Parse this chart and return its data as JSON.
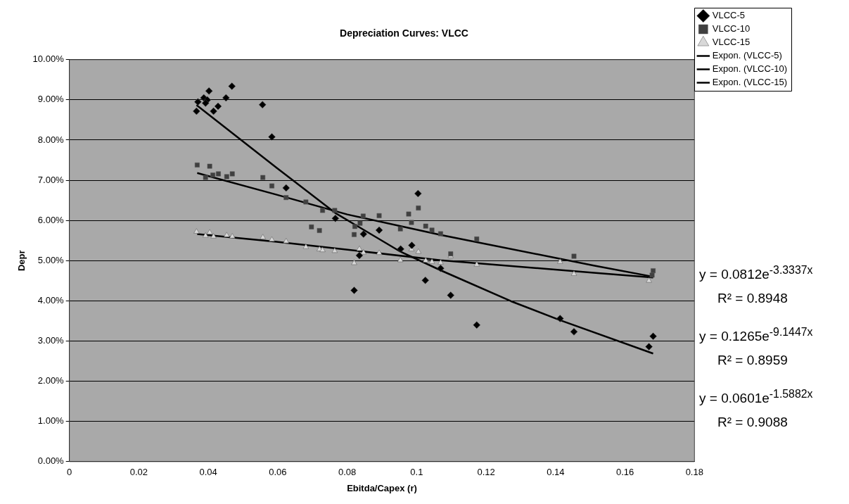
{
  "chart_data": {
    "type": "scatter",
    "title": "Depreciation Curves: VLCC",
    "xlabel": "Ebitda/Capex (r)",
    "ylabel": "Depr",
    "xlim": [
      0,
      0.18
    ],
    "xticks": [
      0,
      0.02,
      0.04,
      0.06,
      0.08,
      0.1,
      0.12,
      0.14,
      0.16,
      0.18
    ],
    "ylim": [
      0,
      10
    ],
    "yticks": [
      {
        "value": 0,
        "label": "0.00%"
      },
      {
        "value": 1,
        "label": "1.00%"
      },
      {
        "value": 2,
        "label": "2.00%"
      },
      {
        "value": 3,
        "label": "3.00%"
      },
      {
        "value": 4,
        "label": "4.00%"
      },
      {
        "value": 5,
        "label": "5.00%"
      },
      {
        "value": 6,
        "label": "6.00%"
      },
      {
        "value": 7,
        "label": "7.00%"
      },
      {
        "value": 8,
        "label": "8.00%"
      },
      {
        "value": 9,
        "label": "9.00%"
      },
      {
        "value": 10,
        "label": "10.00%"
      }
    ],
    "grid": "y",
    "legend": "right",
    "series": [
      {
        "name": "VLCC-5",
        "type": "scatter",
        "marker": "diamond",
        "color": "#000000",
        "x": [
          0.0366,
          0.037,
          0.0387,
          0.0402,
          0.0397,
          0.0392,
          0.0415,
          0.0428,
          0.0451,
          0.0468,
          0.0556,
          0.0583,
          0.0624,
          0.0766,
          0.0847,
          0.0892,
          0.082,
          0.0835,
          0.0954,
          0.0986,
          0.1004,
          0.1025,
          0.1069,
          0.1098,
          0.1173,
          0.1413,
          0.1453,
          0.1669,
          0.1681
        ],
        "values": [
          8.72,
          8.95,
          9.05,
          9.22,
          9.0,
          8.92,
          8.72,
          8.84,
          9.05,
          9.34,
          8.88,
          8.08,
          6.81,
          6.05,
          5.66,
          5.76,
          4.26,
          5.13,
          5.29,
          5.38,
          6.67,
          4.51,
          4.81,
          4.14,
          3.4,
          3.56,
          3.23,
          2.86,
          3.12
        ]
      },
      {
        "name": "VLCC-10",
        "type": "scatter",
        "marker": "square",
        "color": "#404040",
        "x": [
          0.0368,
          0.0404,
          0.0392,
          0.0413,
          0.0429,
          0.0453,
          0.0469,
          0.0557,
          0.0583,
          0.0624,
          0.0681,
          0.0729,
          0.0697,
          0.072,
          0.0764,
          0.082,
          0.0822,
          0.0837,
          0.0846,
          0.0892,
          0.0953,
          0.0977,
          0.0985,
          0.1005,
          0.1026,
          0.1044,
          0.1069,
          0.1098,
          0.1173,
          0.1453,
          0.1678,
          0.1681
        ],
        "values": [
          7.38,
          7.35,
          7.07,
          7.13,
          7.16,
          7.09,
          7.16,
          7.07,
          6.86,
          6.57,
          6.46,
          6.25,
          5.84,
          5.75,
          6.25,
          5.65,
          5.85,
          5.93,
          6.11,
          6.12,
          5.79,
          6.16,
          5.95,
          6.31,
          5.86,
          5.76,
          5.67,
          5.17,
          5.54,
          5.11,
          4.64,
          4.75
        ]
      },
      {
        "name": "VLCC-15",
        "type": "scatter",
        "marker": "triangle",
        "color": "#d8d8d8",
        "x": [
          0.0366,
          0.0392,
          0.0404,
          0.0415,
          0.0453,
          0.0469,
          0.0557,
          0.0583,
          0.0624,
          0.0681,
          0.072,
          0.0729,
          0.0764,
          0.082,
          0.0835,
          0.0847,
          0.0892,
          0.0953,
          0.0985,
          0.1005,
          0.1026,
          0.1044,
          0.1069,
          0.1098,
          0.1173,
          0.1413,
          0.1453,
          0.1669
        ],
        "values": [
          5.72,
          5.62,
          5.7,
          5.6,
          5.63,
          5.6,
          5.58,
          5.52,
          5.48,
          5.34,
          5.28,
          5.26,
          5.24,
          4.94,
          5.29,
          5.2,
          5.19,
          5.01,
          5.28,
          5.22,
          5.0,
          4.97,
          4.95,
          5.11,
          4.9,
          4.97,
          4.67,
          4.5
        ]
      },
      {
        "name": "Expon. (VLCC-5)",
        "type": "line",
        "marker": "none",
        "color": "#000000",
        "x": [
          0.0366,
          0.0597,
          0.0765,
          0.0954,
          0.1069,
          0.1272,
          0.1413,
          0.1681
        ],
        "values": [
          8.87,
          7.31,
          6.19,
          5.22,
          4.76,
          3.99,
          3.52,
          2.69
        ]
      },
      {
        "name": "Expon. (VLCC-10)",
        "type": "line",
        "marker": "none",
        "color": "#000000",
        "x": [
          0.0368,
          0.0597,
          0.08,
          0.1069,
          0.151,
          0.1681
        ],
        "values": [
          7.18,
          6.64,
          6.15,
          5.64,
          4.88,
          4.6
        ]
      },
      {
        "name": "Expon. (VLCC-15)",
        "type": "line",
        "marker": "none",
        "color": "#000000",
        "x": [
          0.0368,
          0.0597,
          0.1069,
          0.151,
          0.1681
        ],
        "values": [
          5.66,
          5.47,
          5.01,
          4.7,
          4.58
        ]
      }
    ],
    "annotations": [
      "y = 0.0812e$^{-3.3337x}$",
      "R² = 0.8948",
      "y = 0.1265e$^{-9.1447x}$",
      "R² = 0.8959",
      "y = 0.0601e$^{-1.5882x}$",
      "R² = 0.9088"
    ]
  }
}
